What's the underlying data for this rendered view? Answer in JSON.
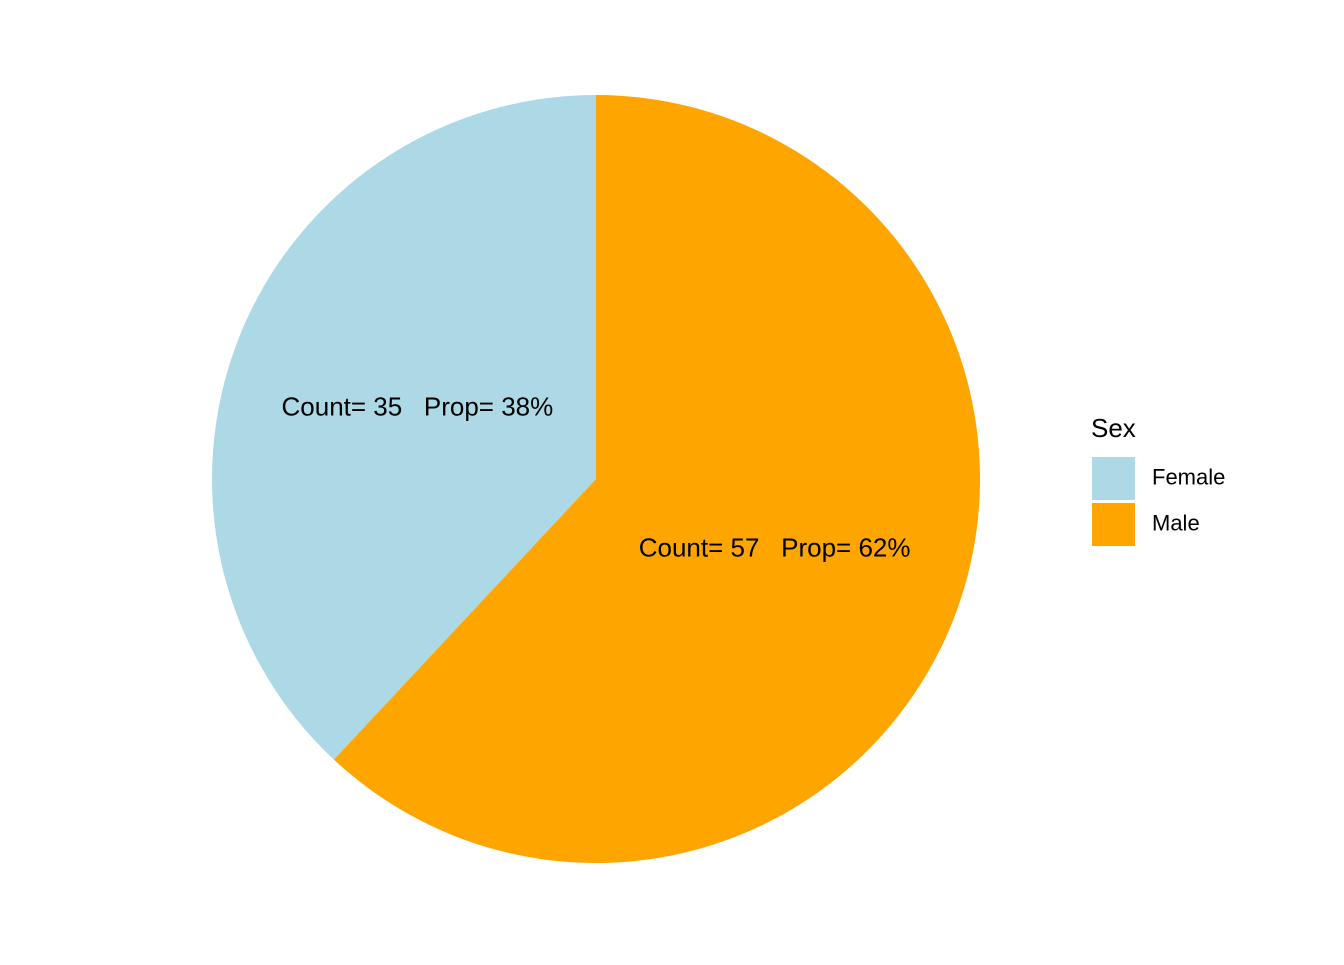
{
  "chart_data": {
    "type": "pie",
    "legend": {
      "title": "Sex",
      "position": "right"
    },
    "slices": [
      {
        "name": "Female",
        "count": 35,
        "proportion_pct": 38,
        "color": "#ADD8E6",
        "label": "Count= 35   Prop= 38%"
      },
      {
        "name": "Male",
        "count": 57,
        "proportion_pct": 62,
        "color": "#FFA500",
        "label": "Count= 57   Prop= 62%"
      }
    ]
  }
}
